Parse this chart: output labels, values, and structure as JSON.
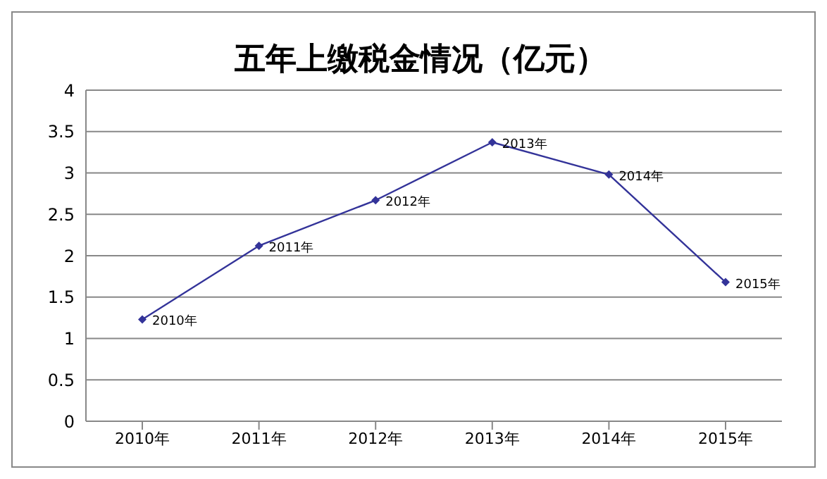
{
  "chart_data": {
    "type": "line",
    "title": "五年上缴税金情况（亿元）",
    "categories": [
      "2010年",
      "2011年",
      "2012年",
      "2013年",
      "2014年",
      "2015年"
    ],
    "series": [
      {
        "color": "#333399",
        "values": [
          1.23,
          2.12,
          2.67,
          3.37,
          2.98,
          1.68
        ]
      }
    ],
    "annotations": [
      {
        "text": "2010年",
        "x": "2010年",
        "y": 1.23
      },
      {
        "text": "2011年",
        "x": "2011年",
        "y": 2.12
      },
      {
        "text": "2012年",
        "x": "2012年",
        "y": 2.67
      },
      {
        "text": "2013年",
        "x": "2013年",
        "y": 3.37
      },
      {
        "text": "2014年",
        "x": "2014年",
        "y": 2.98
      },
      {
        "text": "2015年",
        "x": "2015年",
        "y": 1.68
      }
    ],
    "ylim": [
      0,
      4
    ],
    "yticks": [
      0,
      0.5,
      1,
      1.5,
      2,
      2.5,
      3,
      3.5,
      4
    ],
    "grid": "y",
    "legend": false,
    "marker": "diamond",
    "line_style": "solid"
  }
}
